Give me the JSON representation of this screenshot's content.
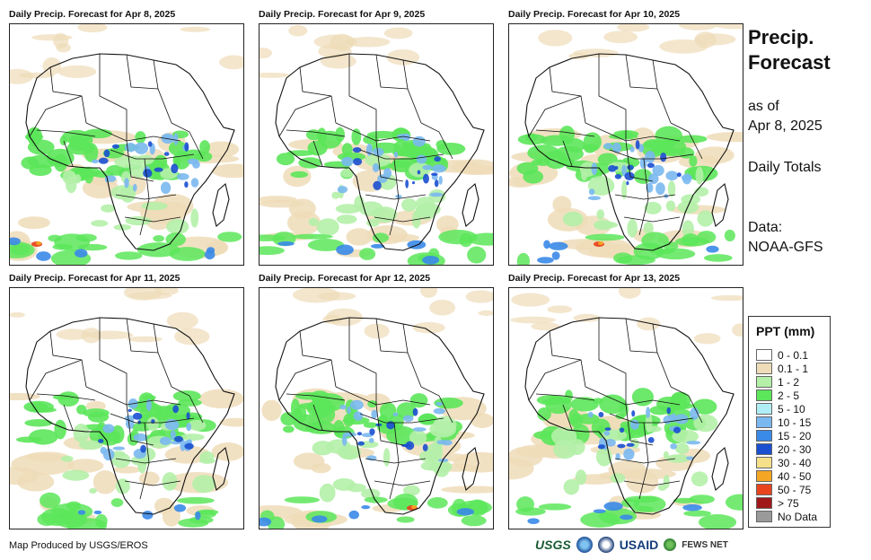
{
  "panels": [
    {
      "title": "Daily Precip. Forecast for Apr 8, 2025"
    },
    {
      "title": "Daily Precip. Forecast for Apr 9, 2025"
    },
    {
      "title": "Daily Precip. Forecast for Apr 10, 2025"
    },
    {
      "title": "Daily Precip. Forecast for Apr 11, 2025"
    },
    {
      "title": "Daily Precip. Forecast for Apr 12, 2025"
    },
    {
      "title": "Daily Precip. Forecast for Apr 13, 2025"
    }
  ],
  "side": {
    "title_line1": "Precip.",
    "title_line2": "Forecast",
    "asof_line1": "as of",
    "asof_line2": "Apr 8, 2025",
    "totals": "Daily Totals",
    "data_line1": "Data:",
    "data_line2": "NOAA-GFS"
  },
  "legend": {
    "title": "PPT (mm)",
    "items": [
      {
        "label": "0 - 0.1",
        "color": "#ffffff"
      },
      {
        "label": "0.1 - 1",
        "color": "#eedcb8"
      },
      {
        "label": "1 - 2",
        "color": "#b4f0a8"
      },
      {
        "label": "2 - 5",
        "color": "#5ce65a"
      },
      {
        "label": "5 - 10",
        "color": "#b0eef6"
      },
      {
        "label": "10 - 15",
        "color": "#7ab8f0"
      },
      {
        "label": "15 - 20",
        "color": "#3a8ae8"
      },
      {
        "label": "20 - 30",
        "color": "#1a4fd0"
      },
      {
        "label": "30 - 40",
        "color": "#f6e08a"
      },
      {
        "label": "40 - 50",
        "color": "#f5a623"
      },
      {
        "label": "50 - 75",
        "color": "#e8451e"
      },
      {
        "label": "> 75",
        "color": "#a01818"
      },
      {
        "label": "No Data",
        "color": "#9a9a9a"
      }
    ]
  },
  "footer": {
    "credit": "Map Produced by USGS/EROS",
    "logo_usgs": "USGS",
    "logo_usaid": "USAID",
    "logo_fews": "FEWS NET"
  }
}
